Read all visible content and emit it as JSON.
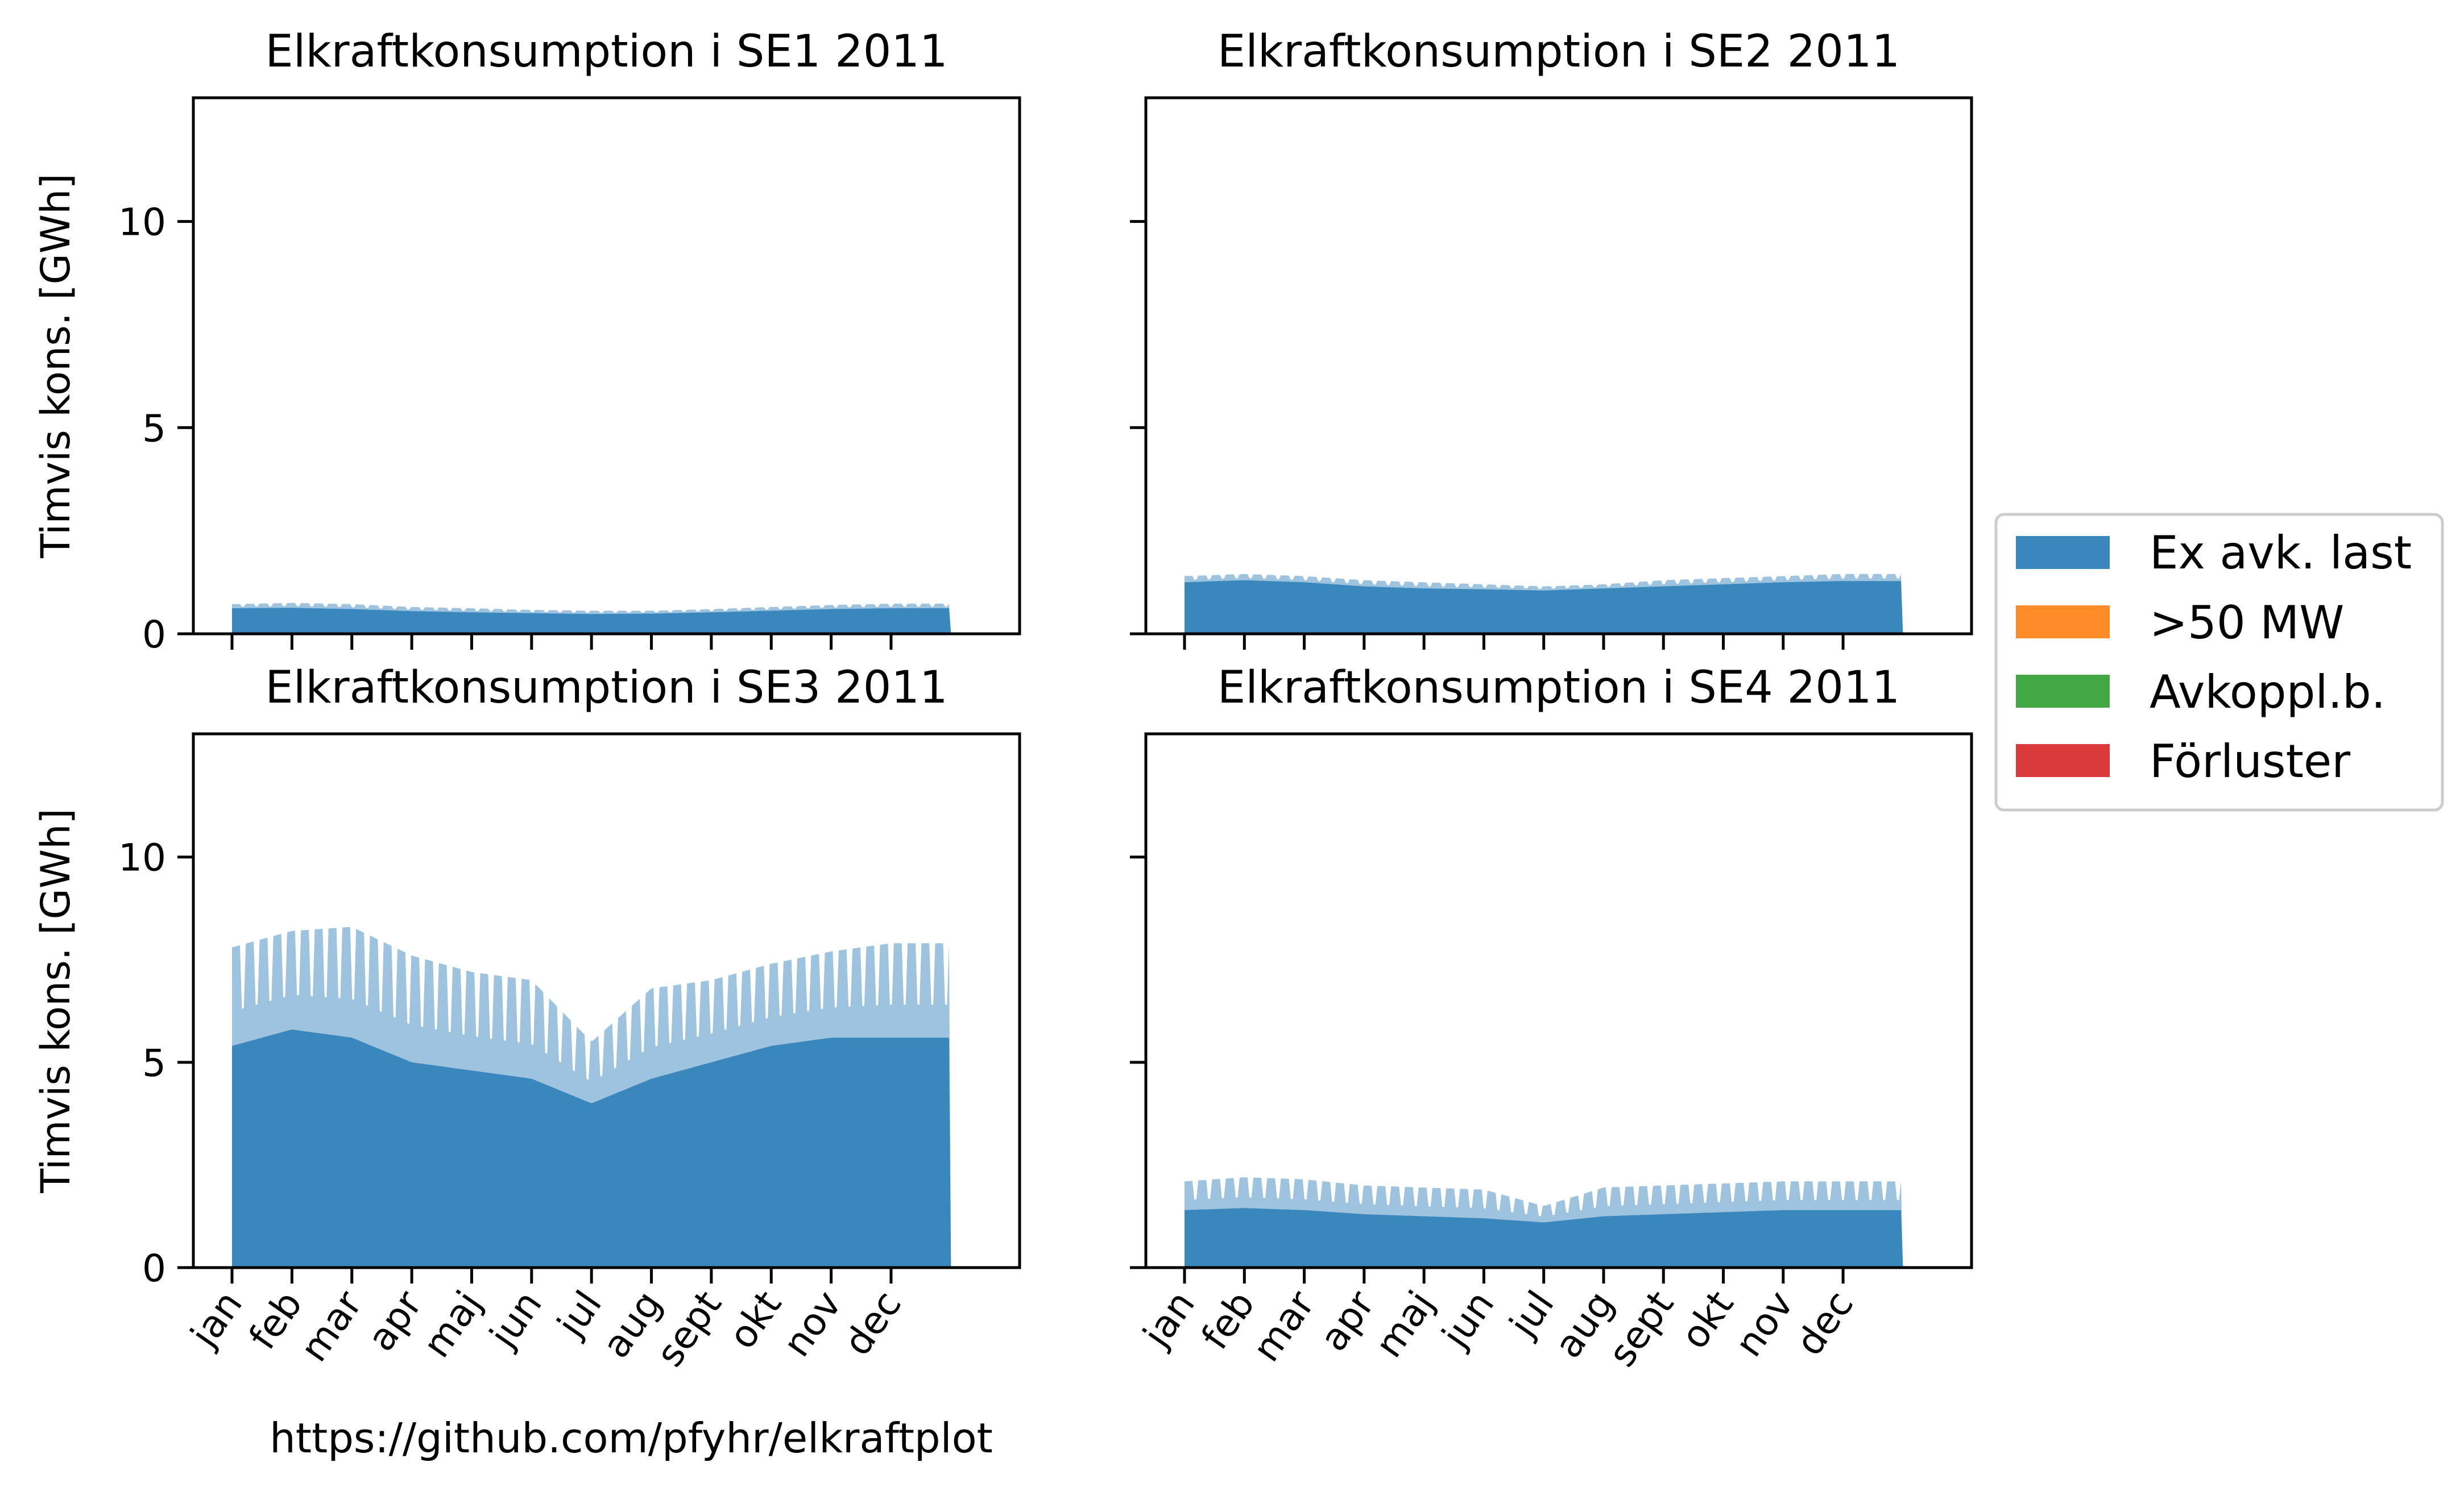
{
  "source_url": "https://github.com/pfyhr/elkraftplot",
  "chart_data": [
    {
      "type": "area",
      "title": "Elkraftkonsumption i SE1 2011",
      "ylabel": "Timvis kons. [GWh]",
      "xlabel": "",
      "ylim": [
        0,
        13
      ],
      "yticks": [
        0,
        5,
        10
      ],
      "x_tick_labels": [
        "jan",
        "feb",
        "mar",
        "apr",
        "maj",
        "jun",
        "jul",
        "aug",
        "sept",
        "okt",
        "nov",
        "dec"
      ],
      "series": [
        {
          "name": "Ex avk. last",
          "base_monthly": [
            0.62,
            0.63,
            0.6,
            0.55,
            0.52,
            0.5,
            0.48,
            0.49,
            0.52,
            0.56,
            0.6,
            0.62
          ],
          "peak_monthly": [
            0.72,
            0.75,
            0.72,
            0.65,
            0.62,
            0.58,
            0.56,
            0.56,
            0.6,
            0.65,
            0.7,
            0.73
          ]
        },
        {
          "name": ">50 MW",
          "values": []
        },
        {
          "name": "Avkoppl.b.",
          "values": []
        },
        {
          "name": "Förluster",
          "values": []
        }
      ]
    },
    {
      "type": "area",
      "title": "Elkraftkonsumption i SE2 2011",
      "ylabel": "",
      "xlabel": "",
      "ylim": [
        0,
        13
      ],
      "yticks": [
        0,
        5,
        10
      ],
      "x_tick_labels": [
        "jan",
        "feb",
        "mar",
        "apr",
        "maj",
        "jun",
        "jul",
        "aug",
        "sept",
        "okt",
        "nov",
        "dec"
      ],
      "series": [
        {
          "name": "Ex avk. last",
          "base_monthly": [
            1.25,
            1.3,
            1.25,
            1.15,
            1.1,
            1.08,
            1.05,
            1.1,
            1.15,
            1.2,
            1.25,
            1.28
          ],
          "peak_monthly": [
            1.4,
            1.45,
            1.4,
            1.3,
            1.25,
            1.2,
            1.15,
            1.2,
            1.3,
            1.35,
            1.4,
            1.45
          ]
        },
        {
          "name": ">50 MW",
          "values": []
        },
        {
          "name": "Avkoppl.b.",
          "values": []
        },
        {
          "name": "Förluster",
          "values": []
        }
      ]
    },
    {
      "type": "area",
      "title": "Elkraftkonsumption i SE3 2011",
      "ylabel": "Timvis kons. [GWh]",
      "xlabel": "",
      "ylim": [
        0,
        13
      ],
      "yticks": [
        0,
        5,
        10
      ],
      "x_tick_labels": [
        "jan",
        "feb",
        "mar",
        "apr",
        "maj",
        "jun",
        "jul",
        "aug",
        "sept",
        "okt",
        "nov",
        "dec"
      ],
      "series": [
        {
          "name": "Ex avk. last",
          "base_monthly": [
            5.4,
            5.8,
            5.6,
            5.0,
            4.8,
            4.6,
            4.0,
            4.6,
            5.0,
            5.4,
            5.6,
            5.6
          ],
          "peak_monthly": [
            7.8,
            8.2,
            8.3,
            7.6,
            7.2,
            7.0,
            5.5,
            6.8,
            7.0,
            7.4,
            7.7,
            7.9
          ]
        },
        {
          "name": ">50 MW",
          "values": []
        },
        {
          "name": "Avkoppl.b.",
          "values": []
        },
        {
          "name": "Förluster",
          "values": []
        }
      ]
    },
    {
      "type": "area",
      "title": "Elkraftkonsumption i SE4 2011",
      "ylabel": "",
      "xlabel": "",
      "ylim": [
        0,
        13
      ],
      "yticks": [
        0,
        5,
        10
      ],
      "x_tick_labels": [
        "jan",
        "feb",
        "mar",
        "apr",
        "maj",
        "jun",
        "jul",
        "aug",
        "sept",
        "okt",
        "nov",
        "dec"
      ],
      "series": [
        {
          "name": "Ex avk. last",
          "base_monthly": [
            1.4,
            1.45,
            1.4,
            1.3,
            1.25,
            1.2,
            1.1,
            1.25,
            1.3,
            1.35,
            1.4,
            1.4
          ],
          "peak_monthly": [
            2.1,
            2.2,
            2.15,
            2.0,
            1.95,
            1.9,
            1.5,
            1.95,
            2.0,
            2.05,
            2.1,
            2.1
          ]
        },
        {
          "name": ">50 MW",
          "values": []
        },
        {
          "name": "Avkoppl.b.",
          "values": []
        },
        {
          "name": "Förluster",
          "values": []
        }
      ]
    }
  ],
  "legend": {
    "placement": "right",
    "items": [
      {
        "label": "Ex avk. last",
        "color": "#3a87be"
      },
      {
        "label": ">50 MW",
        "color": "#ff8c28"
      },
      {
        "label": "Avkoppl.b.",
        "color": "#42a742"
      },
      {
        "label": "Förluster",
        "color": "#da3a3b"
      }
    ]
  }
}
